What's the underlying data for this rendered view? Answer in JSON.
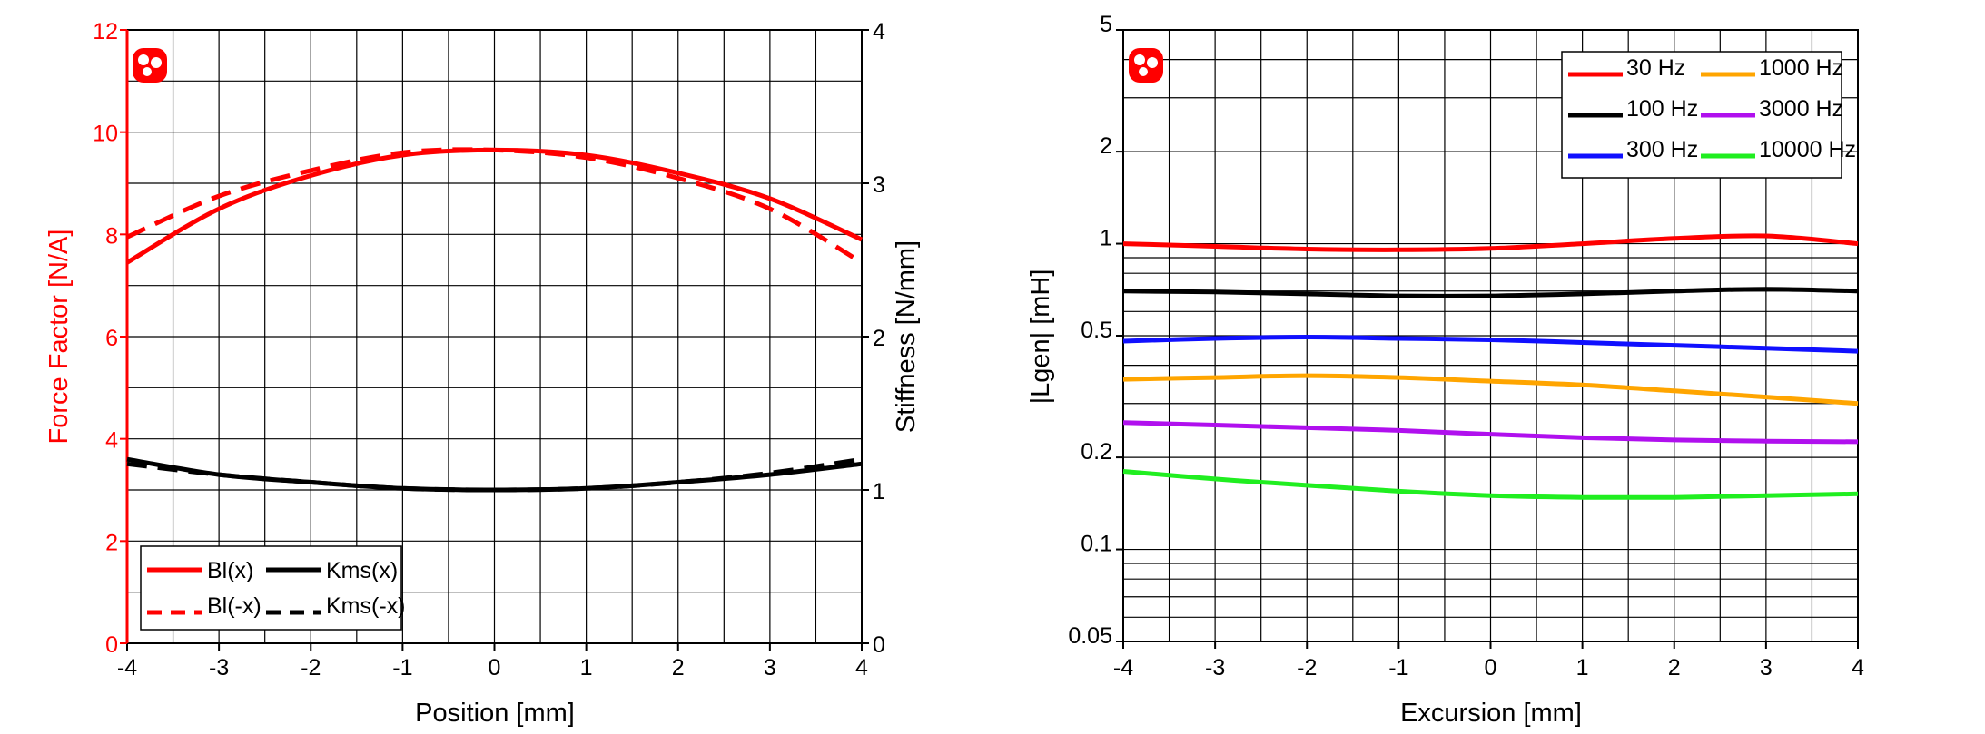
{
  "colors": {
    "red": "#ff0000",
    "black": "#000000",
    "blue": "#1010ff",
    "orange": "#ffa500",
    "purple": "#b010ee",
    "green": "#20ee20",
    "grid": "#000000"
  },
  "chart_data": [
    {
      "type": "line",
      "xlabel": "Position [mm]",
      "ylabel_left": "Force Factor [N/A]",
      "ylabel_right": "Stiffness [N/mm]",
      "xlim": [
        -4,
        4
      ],
      "ylim_left": [
        0,
        12
      ],
      "ylim_right": [
        0,
        4
      ],
      "x_ticks": [
        "-4",
        "-3",
        "-2",
        "-1",
        "0",
        "1",
        "2",
        "3",
        "4"
      ],
      "y_left_ticks": [
        "0",
        "2",
        "4",
        "6",
        "8",
        "10",
        "12"
      ],
      "y_right_ticks": [
        "0",
        "1",
        "2",
        "3",
        "4"
      ],
      "grid": true,
      "legend_position": "bottom-left",
      "series": [
        {
          "name": "Bl(x)",
          "axis": "left",
          "style": "solid",
          "color": "#ff0000",
          "x": [
            -4,
            -3,
            -2,
            -1,
            0,
            1,
            2,
            3,
            4
          ],
          "y": [
            7.45,
            8.5,
            9.15,
            9.55,
            9.65,
            9.55,
            9.2,
            8.7,
            7.9
          ]
        },
        {
          "name": "Bl(-x)",
          "axis": "left",
          "style": "dashed",
          "color": "#ff0000",
          "x": [
            -4,
            -3,
            -2,
            -1,
            0,
            1,
            2,
            3,
            4
          ],
          "y": [
            7.95,
            8.75,
            9.25,
            9.6,
            9.65,
            9.5,
            9.1,
            8.5,
            7.45
          ]
        },
        {
          "name": "Kms(x)",
          "axis": "right",
          "style": "solid",
          "color": "#000000",
          "x": [
            -4,
            -3,
            -2,
            -1,
            0,
            1,
            2,
            3,
            4
          ],
          "y": [
            1.2,
            1.1,
            1.05,
            1.01,
            1.0,
            1.01,
            1.05,
            1.1,
            1.17
          ]
        },
        {
          "name": "Kms(-x)",
          "axis": "right",
          "style": "dashed",
          "color": "#000000",
          "x": [
            -4,
            -3,
            -2,
            -1,
            0,
            1,
            2,
            3,
            4
          ],
          "y": [
            1.17,
            1.1,
            1.05,
            1.01,
            1.0,
            1.01,
            1.05,
            1.11,
            1.2
          ]
        }
      ]
    },
    {
      "type": "line",
      "xlabel": "Excursion [mm]",
      "ylabel": "|Lgen| [mH]",
      "yscale": "log",
      "xlim": [
        -4,
        4
      ],
      "ylim": [
        0.05,
        5
      ],
      "x_ticks": [
        "-4",
        "-3",
        "-2",
        "-1",
        "0",
        "1",
        "2",
        "3",
        "4"
      ],
      "y_ticks": [
        "0.05",
        "0.1",
        "0.2",
        "0.5",
        "1",
        "2",
        "5"
      ],
      "grid": true,
      "legend_position": "top-right",
      "series": [
        {
          "name": "30 Hz",
          "color": "#ff0000",
          "x": [
            -4,
            -3,
            -2,
            -1,
            0,
            1,
            2,
            3,
            4
          ],
          "y": [
            1.0,
            0.98,
            0.96,
            0.955,
            0.965,
            1.0,
            1.04,
            1.06,
            1.0
          ]
        },
        {
          "name": "100 Hz",
          "color": "#000000",
          "x": [
            -4,
            -3,
            -2,
            -1,
            0,
            1,
            2,
            3,
            4
          ],
          "y": [
            0.7,
            0.695,
            0.685,
            0.675,
            0.675,
            0.685,
            0.7,
            0.71,
            0.7
          ]
        },
        {
          "name": "300 Hz",
          "color": "#1010ff",
          "x": [
            -4,
            -3,
            -2,
            -1,
            0,
            1,
            2,
            3,
            4
          ],
          "y": [
            0.48,
            0.49,
            0.495,
            0.49,
            0.485,
            0.475,
            0.465,
            0.455,
            0.445
          ]
        },
        {
          "name": "1000 Hz",
          "color": "#ffa500",
          "x": [
            -4,
            -3,
            -2,
            -1,
            0,
            1,
            2,
            3,
            4
          ],
          "y": [
            0.36,
            0.365,
            0.37,
            0.365,
            0.355,
            0.345,
            0.33,
            0.315,
            0.3
          ]
        },
        {
          "name": "3000 Hz",
          "color": "#b010ee",
          "x": [
            -4,
            -3,
            -2,
            -1,
            0,
            1,
            2,
            3,
            4
          ],
          "y": [
            0.26,
            0.255,
            0.25,
            0.245,
            0.238,
            0.232,
            0.228,
            0.226,
            0.225
          ]
        },
        {
          "name": "10000 Hz",
          "color": "#20ee20",
          "x": [
            -4,
            -3,
            -2,
            -1,
            0,
            1,
            2,
            3,
            4
          ],
          "y": [
            0.18,
            0.17,
            0.162,
            0.155,
            0.15,
            0.148,
            0.148,
            0.15,
            0.152
          ]
        }
      ]
    }
  ]
}
